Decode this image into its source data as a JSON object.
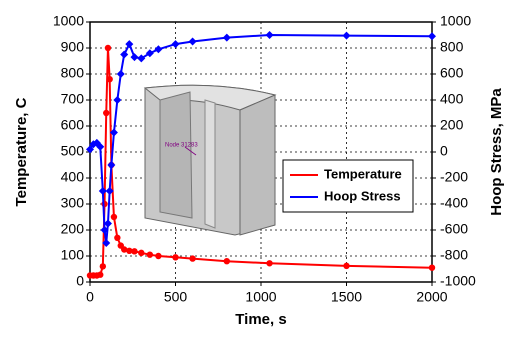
{
  "chart_data": {
    "type": "line",
    "xlabel": "Time, s",
    "ylabel": "Temperature, C",
    "y2label": "Hoop Stress, MPa",
    "annotation": "Node 31283",
    "x": [
      0,
      20,
      40,
      60,
      75,
      85,
      95,
      105,
      115,
      125,
      140,
      160,
      180,
      200,
      230,
      260,
      300,
      350,
      400,
      500,
      600,
      800,
      1050,
      1500,
      2000
    ],
    "series": [
      {
        "name": "Temperature",
        "color": "#ff0000",
        "marker": "circle",
        "values": [
          25,
          25,
          25,
          28,
          60,
          300,
          650,
          900,
          780,
          450,
          250,
          170,
          140,
          125,
          120,
          118,
          112,
          105,
          100,
          95,
          90,
          80,
          72,
          62,
          55
        ]
      },
      {
        "name": "Hoop Stress",
        "color": "#0000ff",
        "marker": "diamond",
        "axis": "y2",
        "values": [
          20,
          60,
          70,
          40,
          -300,
          -600,
          -700,
          -550,
          -300,
          -100,
          150,
          400,
          600,
          750,
          830,
          730,
          720,
          760,
          790,
          830,
          850,
          880,
          900,
          895,
          890
        ]
      }
    ],
    "xlim": [
      0,
      2000
    ],
    "xticks": [
      0,
      500,
      1000,
      1500,
      2000
    ],
    "ylim": [
      0,
      1000
    ],
    "yticks": [
      0,
      100,
      200,
      300,
      400,
      500,
      600,
      700,
      800,
      900,
      1000
    ],
    "y2lim": [
      -1000,
      1000
    ],
    "y2ticks": [
      -1000,
      -800,
      -600,
      -400,
      -200,
      0,
      200,
      400,
      600,
      800,
      1000
    ],
    "grid": true,
    "legend": "right"
  }
}
